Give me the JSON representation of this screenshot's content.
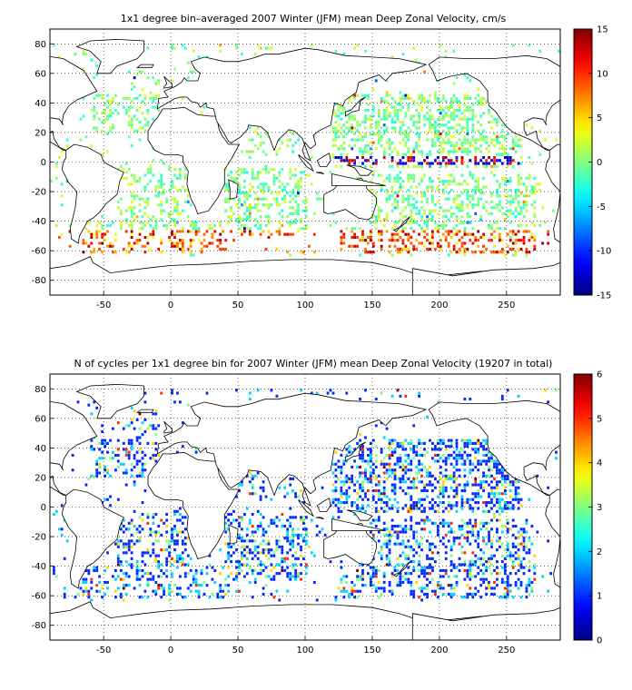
{
  "chart_data": [
    {
      "type": "heatmap",
      "title": "1x1 degree bin–averaged 2007 Winter (JFM) mean Deep Zonal Velocity, cm/s",
      "xlabel": "",
      "ylabel": "",
      "xlim": [
        -90,
        290
      ],
      "ylim": [
        -90,
        90
      ],
      "x_ticks": [
        "-50",
        "0",
        "50",
        "100",
        "150",
        "200",
        "250"
      ],
      "y_ticks": [
        "80",
        "60",
        "40",
        "20",
        "0",
        "-20",
        "-40",
        "-60",
        "-80"
      ],
      "colorbar": {
        "min": -15,
        "max": 15,
        "ticks": [
          "15",
          "10",
          "5",
          "0",
          "-5",
          "-10",
          "-15"
        ],
        "colormap": "jet"
      },
      "grid": true
    },
    {
      "type": "heatmap",
      "title": "N of cycles per 1x1 degree bin for 2007 Winter (JFM) mean Deep Zonal Velocity (19207 in total)",
      "xlabel": "",
      "ylabel": "",
      "xlim": [
        -90,
        290
      ],
      "ylim": [
        -90,
        90
      ],
      "x_ticks": [
        "-50",
        "0",
        "50",
        "100",
        "150",
        "200",
        "250"
      ],
      "y_ticks": [
        "80",
        "60",
        "40",
        "20",
        "0",
        "-20",
        "-40",
        "-60",
        "-80"
      ],
      "colorbar": {
        "min": 0,
        "max": 6,
        "ticks": [
          "6",
          "5",
          "4",
          "3",
          "2",
          "1",
          "0"
        ],
        "colormap": "jet"
      },
      "grid": true
    }
  ]
}
